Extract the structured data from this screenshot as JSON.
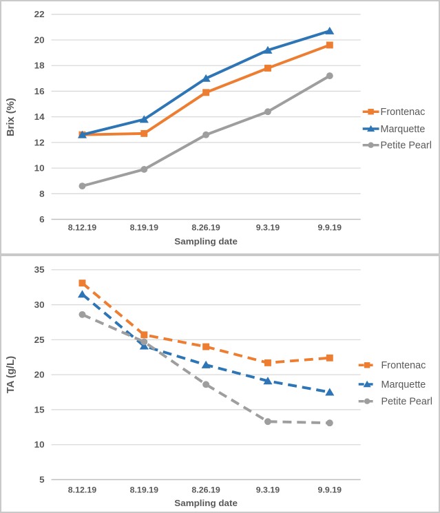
{
  "figure": {
    "description": "Two stacked line charts of grape ripening metrics by sampling date"
  },
  "colors": {
    "frontenac": "#ED7D31",
    "marquette": "#2E75B6",
    "petite_pearl": "#9E9E9E",
    "grid": "#D9D9D9",
    "axis_line": "#BFBFBF",
    "text": "#595959",
    "panel_border": "#C9C9C9",
    "background": "#FFFFFF"
  },
  "chart_data": [
    {
      "type": "line",
      "title": "",
      "xlabel": "Sampling date",
      "ylabel": "Brix (%)",
      "ylim": [
        6,
        22
      ],
      "ytick_step": 2,
      "yticks": [
        6,
        8,
        10,
        12,
        14,
        16,
        18,
        20,
        22
      ],
      "grid": true,
      "legend_position": "right",
      "line_style": "solid",
      "categories": [
        "8.12.19",
        "8.19.19",
        "8.26.19",
        "9.3.19",
        "9.9.19"
      ],
      "series": [
        {
          "name": "Frontenac",
          "marker": "square",
          "color": "#ED7D31",
          "values": [
            12.6,
            12.7,
            15.9,
            17.8,
            19.6
          ]
        },
        {
          "name": "Marquette",
          "marker": "triangle",
          "color": "#2E75B6",
          "values": [
            12.6,
            13.8,
            17.0,
            19.2,
            20.7
          ]
        },
        {
          "name": "Petite Pearl",
          "marker": "circle",
          "color": "#9E9E9E",
          "values": [
            8.6,
            9.9,
            12.6,
            14.4,
            17.2
          ]
        }
      ]
    },
    {
      "type": "line",
      "title": "",
      "xlabel": "Sampling date",
      "ylabel": "TA (g/L)",
      "ylim": [
        5,
        35
      ],
      "ytick_step": 5,
      "yticks": [
        5,
        10,
        15,
        20,
        25,
        30,
        35
      ],
      "grid": true,
      "legend_position": "right",
      "line_style": "dashed",
      "categories": [
        "8.12.19",
        "8.19.19",
        "8.26.19",
        "9.3.19",
        "9.9.19"
      ],
      "series": [
        {
          "name": "Frontenac",
          "marker": "square",
          "color": "#ED7D31",
          "values": [
            33.1,
            25.7,
            24.0,
            21.7,
            22.4
          ]
        },
        {
          "name": "Marquette",
          "marker": "triangle",
          "color": "#2E75B6",
          "values": [
            31.5,
            24.1,
            21.4,
            19.1,
            17.5
          ]
        },
        {
          "name": "Petite Pearl",
          "marker": "circle",
          "color": "#9E9E9E",
          "values": [
            28.6,
            24.7,
            18.6,
            13.3,
            13.1
          ]
        }
      ]
    }
  ]
}
